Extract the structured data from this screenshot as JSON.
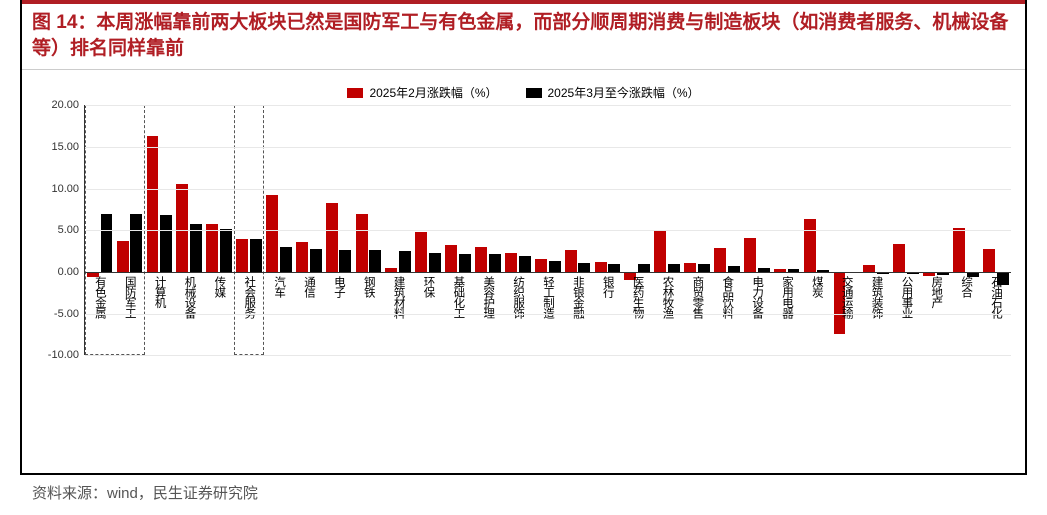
{
  "figure_label": "图 14：",
  "title": "本周涨幅靠前两大板块已然是国防军工与有色金属，而部分顺周期消费与制造板块（如消费者服务、机械设备等）排名同样靠前",
  "source_label": "资料来源：wind，民生证券研究院",
  "chart": {
    "type": "bar",
    "ylim": [
      -10,
      20
    ],
    "ytick_step": 5,
    "yticks": [
      -10.0,
      -5.0,
      0.0,
      5.0,
      10.0,
      15.0,
      20.0
    ],
    "grid_color": "#e8e8e8",
    "axis_color": "#333333",
    "background_color": "#ffffff",
    "label_fontsize": 11.5,
    "tick_fontsize": 11,
    "legend": [
      {
        "label": "2025年2月涨跌幅（%）",
        "color": "#c00000"
      },
      {
        "label": "2025年3月至今涨跌幅（%）",
        "color": "#000000"
      }
    ],
    "highlight_groups": [
      [
        0,
        1
      ],
      [
        5
      ]
    ],
    "highlight_border": "#555555",
    "categories": [
      "有色金属",
      "国防军工",
      "计算机",
      "机械设备",
      "传媒",
      "社会服务",
      "汽车",
      "通信",
      "电子",
      "钢铁",
      "建筑材料",
      "环保",
      "基础化工",
      "美容护理",
      "纺织服饰",
      "轻工制造",
      "非银金融",
      "银行",
      "医药生物",
      "农林牧渔",
      "商贸零售",
      "食品饮料",
      "电力设备",
      "家用电器",
      "煤炭",
      "交通运输",
      "建筑装饰",
      "公用事业",
      "房地产",
      "综合",
      "石油石化"
    ],
    "series": [
      {
        "name": "feb",
        "color": "#c00000",
        "values": [
          -0.6,
          3.7,
          16.3,
          10.6,
          5.8,
          3.9,
          9.2,
          3.6,
          8.3,
          7.0,
          0.5,
          4.8,
          3.2,
          3.0,
          2.3,
          1.5,
          2.6,
          1.2,
          -1.0,
          5.0,
          1.1,
          2.9,
          4.1,
          0.4,
          6.3,
          -7.5,
          0.8,
          3.4,
          -0.5,
          5.3,
          2.8
        ]
      },
      {
        "name": "mar",
        "color": "#000000",
        "values": [
          7.0,
          7.0,
          6.8,
          5.8,
          5.2,
          3.9,
          3.0,
          2.8,
          2.6,
          2.6,
          2.5,
          2.3,
          2.2,
          2.1,
          1.9,
          1.3,
          1.1,
          1.0,
          1.0,
          1.0,
          1.0,
          0.7,
          0.5,
          0.3,
          0.2,
          -0.1,
          -0.2,
          -0.3,
          -0.4,
          -0.6,
          -1.6
        ]
      }
    ]
  }
}
